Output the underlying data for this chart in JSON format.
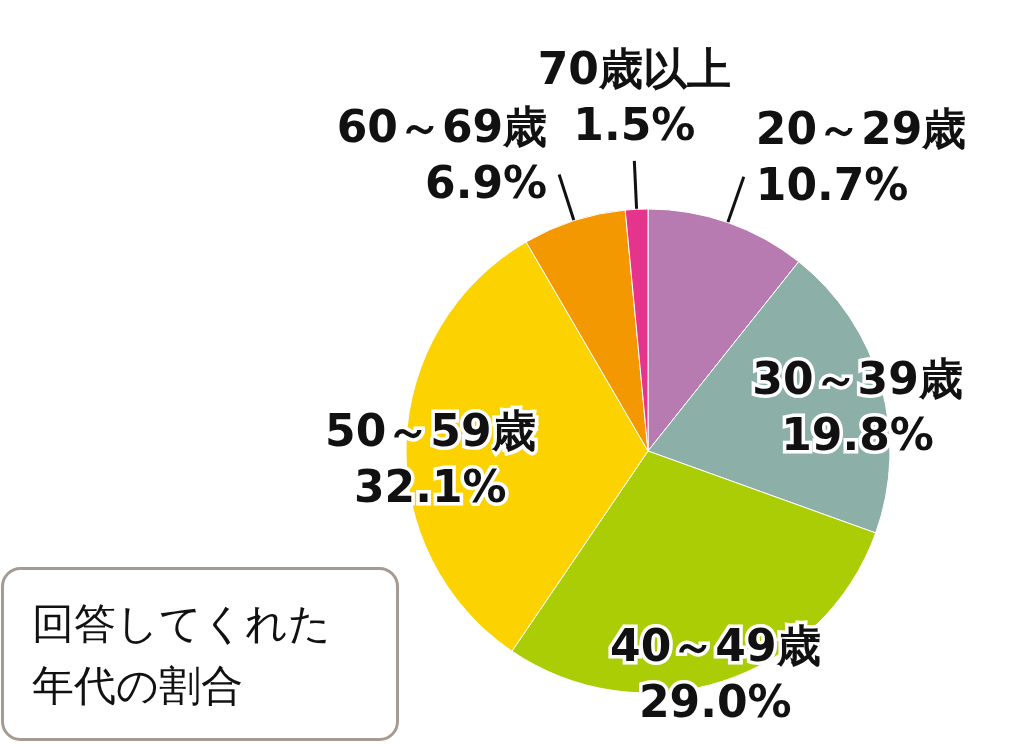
{
  "chart_data": {
    "type": "pie",
    "title": "回答してくれた年代の割合",
    "categories": [
      "20～29歳",
      "30～39歳",
      "40～49歳",
      "50～59歳",
      "60～69歳",
      "70歳以上"
    ],
    "values": [
      10.7,
      19.8,
      29.0,
      32.1,
      6.9,
      1.5
    ],
    "colors": [
      "#b77bb1",
      "#8cb0a7",
      "#aacd06",
      "#fcd200",
      "#f39800",
      "#e4348b"
    ],
    "value_labels": [
      "10.7%",
      "19.8%",
      "29.0%",
      "32.1%",
      "6.9%",
      "1.5%"
    ]
  }
}
